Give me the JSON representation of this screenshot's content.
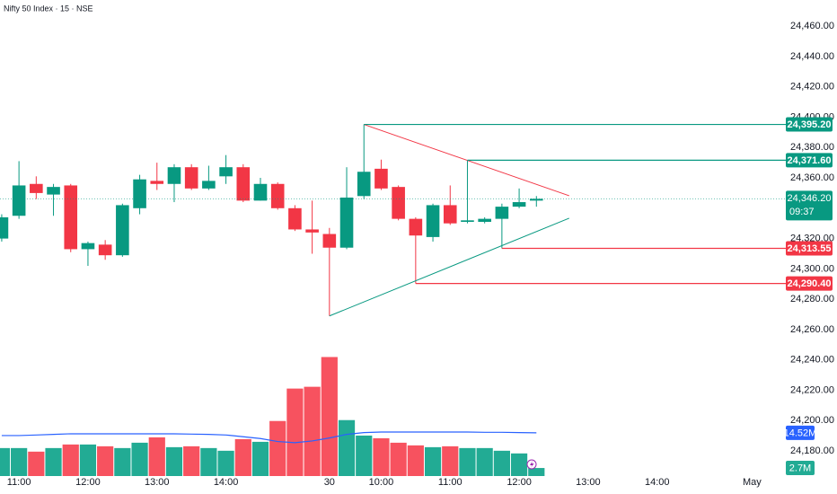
{
  "chart_data": {
    "type": "candlestick",
    "title": "Nifty 50 Index · 15 · NSE",
    "up_color": "#089981",
    "down_color": "#f23645",
    "xlim": [
      -0.1,
      45.2
    ],
    "xticks": [
      {
        "value": 1,
        "label": "11:00"
      },
      {
        "value": 5,
        "label": "12:00"
      },
      {
        "value": 9,
        "label": "13:00"
      },
      {
        "value": 13,
        "label": "14:00"
      },
      {
        "value": 19,
        "label": "30"
      },
      {
        "value": 22,
        "label": "10:00"
      },
      {
        "value": 26,
        "label": "11:00"
      },
      {
        "value": 30,
        "label": "12:00"
      },
      {
        "value": 34,
        "label": "13:00"
      },
      {
        "value": 38,
        "label": "14:00"
      },
      {
        "value": 43.5,
        "label": "May"
      }
    ],
    "ylim": [
      24163.5,
      24477.2
    ],
    "yticks": [
      {
        "value": 24180,
        "label": "24,180.00"
      },
      {
        "value": 24200,
        "label": "24,200.00"
      },
      {
        "value": 24220,
        "label": "24,220.00"
      },
      {
        "value": 24240,
        "label": "24,240.00"
      },
      {
        "value": 24260,
        "label": "24,260.00"
      },
      {
        "value": 24280,
        "label": "24,280.00"
      },
      {
        "value": 24300,
        "label": "24,300.00"
      },
      {
        "value": 24320,
        "label": "24,320.00"
      },
      {
        "value": 24360,
        "label": "24,360.00"
      },
      {
        "value": 24380,
        "label": "24,380.00"
      },
      {
        "value": 24400,
        "label": "24,400.00"
      },
      {
        "value": 24420,
        "label": "24,420.00"
      },
      {
        "value": 24440,
        "label": "24,440.00"
      },
      {
        "value": 24460,
        "label": "24,460.00"
      }
    ],
    "x": [
      0,
      1,
      2,
      3,
      4,
      5,
      6,
      7,
      8,
      9,
      10,
      11,
      12,
      13,
      14,
      15,
      16,
      17,
      18,
      19,
      20,
      21,
      22,
      23,
      24,
      25,
      26,
      27,
      28,
      29,
      30,
      31
    ],
    "open": [
      24320,
      24335,
      24356,
      24349,
      24355,
      24313,
      24316,
      24309,
      24340,
      24358,
      24356,
      24367,
      24353,
      24361,
      24367,
      24345,
      24356,
      24340,
      24326,
      24323,
      24314,
      24348,
      24366,
      24354,
      24333,
      24321,
      24342,
      24331,
      24331,
      24333,
      24341,
      24345
    ],
    "high": [
      24336,
      24371,
      24361,
      24356,
      24356,
      24318,
      24319,
      24343,
      24362,
      24370,
      24369,
      24369,
      24368,
      24375,
      24369,
      24360,
      24357,
      24342,
      24345,
      24327,
      24367,
      24395.2,
      24372,
      24355,
      24334,
      24343,
      24355,
      24371.6,
      24334,
      24343,
      24353,
      24348
    ],
    "low": [
      24318,
      24333,
      24346,
      24335,
      24311,
      24302,
      24306,
      24308,
      24336,
      24352,
      24344,
      24352,
      24352,
      24356,
      24344,
      24345,
      24339,
      24325,
      24310,
      24269,
      24313,
      24346,
      24352,
      24332,
      24290.4,
      24318,
      24329,
      24330,
      24330,
      24313.55,
      24340,
      24341
    ],
    "close": [
      24334,
      24355,
      24350,
      24354,
      24313,
      24317,
      24309,
      24342,
      24359,
      24356,
      24367,
      24353,
      24358,
      24367,
      24345,
      24356,
      24340,
      24326,
      24324,
      24314,
      24347,
      24364,
      24353,
      24333,
      24322,
      24342,
      24330,
      24332,
      24333,
      24341,
      24344,
      24346.2
    ],
    "volume_ylim": [
      0,
      160
    ],
    "volume_up_color": "#22ab94",
    "volume_down_color": "#f7525f",
    "volume": [
      9.4,
      9.4,
      8.2,
      9.4,
      10.6,
      10.6,
      10,
      9.4,
      11.2,
      13,
      9.7,
      10,
      9.4,
      8.5,
      12.4,
      11.5,
      18.5,
      29.4,
      30,
      40,
      18.8,
      13.6,
      12.7,
      11.2,
      10.3,
      9.7,
      10,
      9.4,
      9.4,
      8.5,
      7.6,
      2.7
    ],
    "volume_value_labels": [
      null,
      null,
      null,
      null,
      null,
      null,
      null,
      null,
      null,
      null,
      null,
      null,
      null,
      null,
      null,
      null,
      null,
      null,
      null,
      null,
      null,
      null,
      null,
      null,
      null,
      null,
      null,
      null,
      null,
      null,
      null,
      "2.7M"
    ],
    "volume_ma_color": "#2962ff",
    "volume_ma": [
      13.6,
      13.6,
      13.8,
      14,
      14.2,
      14.2,
      14.2,
      14.2,
      14.2,
      14.2,
      14.2,
      14.1,
      14,
      13.8,
      13.2,
      12.6,
      11.6,
      11.2,
      11.8,
      12.8,
      14,
      14.6,
      14.8,
      14.8,
      14.8,
      14.8,
      14.8,
      14.8,
      14.7,
      14.7,
      14.6,
      14.52
    ],
    "volume_ma_value_labels": [
      null,
      null,
      null,
      null,
      null,
      null,
      null,
      null,
      null,
      null,
      null,
      null,
      null,
      null,
      null,
      null,
      null,
      null,
      null,
      null,
      null,
      null,
      null,
      null,
      null,
      null,
      null,
      null,
      null,
      null,
      null,
      "14.52M"
    ],
    "last_price": {
      "value": 24346.2,
      "label": "24,346.20",
      "countdown": "09:37",
      "color": "#089981"
    },
    "levels": [
      {
        "value": 24395.2,
        "label": "24,395.20",
        "start": 21,
        "color": "#089981"
      },
      {
        "value": 24371.6,
        "label": "24,371.60",
        "start": 27,
        "color": "#089981"
      },
      {
        "value": 24313.55,
        "label": "24,313.55",
        "start": 29,
        "color": "#f23645"
      },
      {
        "value": 24290.4,
        "label": "24,290.40",
        "start": 24,
        "color": "#f23645"
      }
    ],
    "trend_lines": [
      {
        "x": [
          21,
          32.9
        ],
        "y": [
          24395.2,
          24348.2
        ],
        "color": "#f23645"
      },
      {
        "x": [
          19,
          32.9
        ],
        "y": [
          24269,
          24333.4
        ],
        "color": "#089981"
      }
    ]
  }
}
